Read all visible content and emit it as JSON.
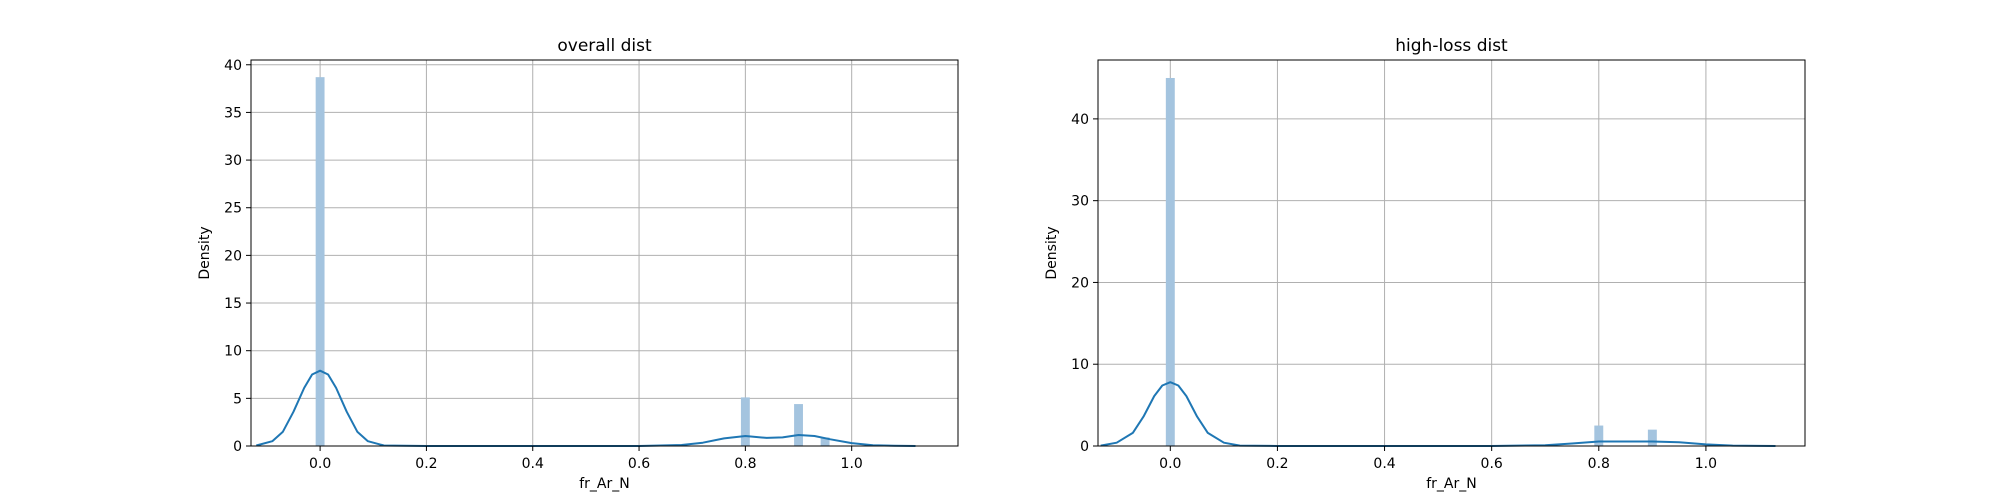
{
  "chart_data": [
    {
      "type": "bar",
      "title": "overall dist",
      "xlabel": "fr_Ar_N",
      "ylabel": "Density",
      "xlim": [
        -0.13,
        1.2
      ],
      "ylim": [
        0,
        40.5
      ],
      "xticks": [
        "0.0",
        "0.2",
        "0.4",
        "0.6",
        "0.8",
        "1.0"
      ],
      "xtick_values": [
        0.0,
        0.2,
        0.4,
        0.6,
        0.8,
        1.0
      ],
      "yticks": [
        "0",
        "5",
        "10",
        "15",
        "20",
        "25",
        "30",
        "35",
        "40"
      ],
      "ytick_values": [
        0,
        5,
        10,
        15,
        20,
        25,
        30,
        35,
        40
      ],
      "grid": true,
      "histogram": {
        "bin_width": 0.0167,
        "bins": [
          {
            "x": 0.0,
            "density": 38.7
          },
          {
            "x": 0.8,
            "density": 5.1
          },
          {
            "x": 0.9,
            "density": 4.4
          },
          {
            "x": 0.95,
            "density": 0.9
          }
        ]
      },
      "kde": {
        "x": [
          -0.12,
          -0.09,
          -0.07,
          -0.05,
          -0.03,
          -0.015,
          0.0,
          0.015,
          0.03,
          0.05,
          0.07,
          0.09,
          0.12,
          0.2,
          0.4,
          0.6,
          0.68,
          0.72,
          0.76,
          0.8,
          0.84,
          0.87,
          0.9,
          0.93,
          0.96,
          1.0,
          1.04,
          1.08,
          1.12
        ],
        "y": [
          0.05,
          0.5,
          1.5,
          3.6,
          6.1,
          7.5,
          7.9,
          7.5,
          6.1,
          3.6,
          1.5,
          0.5,
          0.05,
          0.0,
          0.0,
          0.0,
          0.1,
          0.35,
          0.8,
          1.05,
          0.85,
          0.9,
          1.15,
          1.05,
          0.7,
          0.3,
          0.08,
          0.02,
          0.0
        ]
      }
    },
    {
      "type": "bar",
      "title": "high-loss dist",
      "xlabel": "fr_Ar_N",
      "ylabel": "Density",
      "xlim": [
        -0.135,
        1.185
      ],
      "ylim": [
        0,
        47.2
      ],
      "xticks": [
        "0.0",
        "0.2",
        "0.4",
        "0.6",
        "0.8",
        "1.0"
      ],
      "xtick_values": [
        0.0,
        0.2,
        0.4,
        0.6,
        0.8,
        1.0
      ],
      "yticks": [
        "0",
        "10",
        "20",
        "30",
        "40"
      ],
      "ytick_values": [
        0,
        10,
        20,
        30,
        40
      ],
      "grid": true,
      "histogram": {
        "bin_width": 0.0167,
        "bins": [
          {
            "x": 0.0,
            "density": 45.0
          },
          {
            "x": 0.8,
            "density": 2.5
          },
          {
            "x": 0.9,
            "density": 2.0
          }
        ]
      },
      "kde": {
        "x": [
          -0.13,
          -0.1,
          -0.07,
          -0.05,
          -0.03,
          -0.015,
          0.0,
          0.015,
          0.03,
          0.05,
          0.07,
          0.1,
          0.13,
          0.2,
          0.4,
          0.6,
          0.7,
          0.75,
          0.8,
          0.85,
          0.9,
          0.95,
          1.0,
          1.05,
          1.1,
          1.13
        ],
        "y": [
          0.05,
          0.4,
          1.6,
          3.6,
          6.1,
          7.4,
          7.8,
          7.4,
          6.1,
          3.6,
          1.6,
          0.4,
          0.05,
          0.0,
          0.0,
          0.0,
          0.1,
          0.3,
          0.55,
          0.55,
          0.55,
          0.45,
          0.2,
          0.05,
          0.01,
          0.0
        ]
      }
    }
  ],
  "colors": {
    "bar_fill": "#a4c4df",
    "kde_line": "#1f77b4",
    "grid": "#b0b0b0",
    "frame": "#000000"
  }
}
